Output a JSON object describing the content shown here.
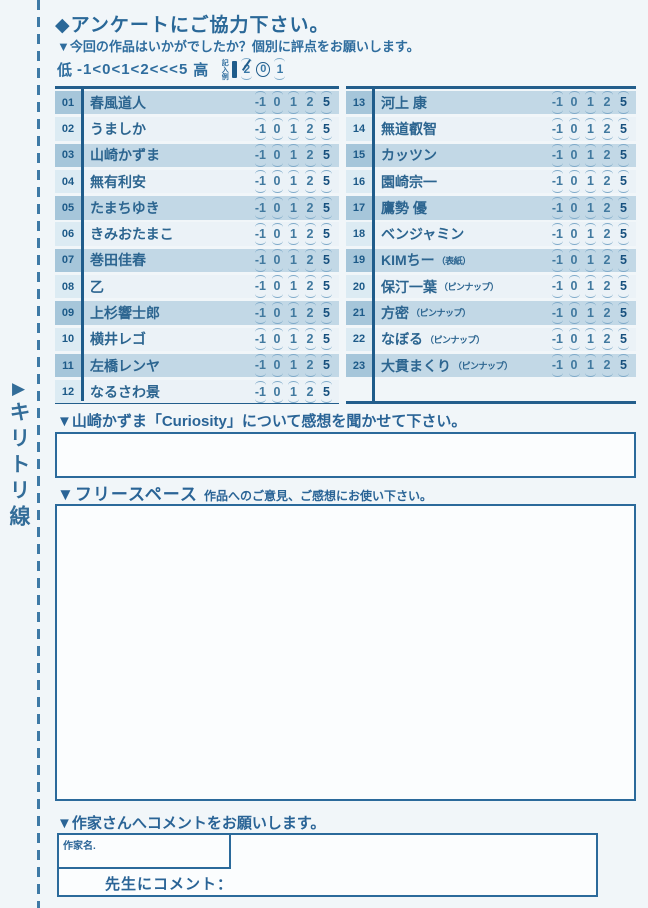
{
  "cutline": {
    "arrow": "▶",
    "label": "キリトリ線"
  },
  "header": {
    "title": "◆アンケートにご協力下さい。",
    "subtitle": "▼今回の作品はいかがでしたか？個別に評点をお願いします。",
    "scale": {
      "low_label": "低",
      "scale_text": "-1<0<1<2<<<5",
      "high_label": "高",
      "example_label": "記入例",
      "example_marks": [
        "2",
        "0",
        "1"
      ]
    }
  },
  "ratings": {
    "options": [
      "-1",
      "0",
      "1",
      "2",
      "5"
    ],
    "entries_left": [
      {
        "no": "01",
        "name": "春風道人",
        "note": ""
      },
      {
        "no": "02",
        "name": "うましか",
        "note": ""
      },
      {
        "no": "03",
        "name": "山崎かずま",
        "note": ""
      },
      {
        "no": "04",
        "name": "無有利安",
        "note": ""
      },
      {
        "no": "05",
        "name": "たまちゆき",
        "note": ""
      },
      {
        "no": "06",
        "name": "きみおたまこ",
        "note": ""
      },
      {
        "no": "07",
        "name": "巻田佳春",
        "note": ""
      },
      {
        "no": "08",
        "name": "乙",
        "note": ""
      },
      {
        "no": "09",
        "name": "上杉響士郎",
        "note": ""
      },
      {
        "no": "10",
        "name": "横井レゴ",
        "note": ""
      },
      {
        "no": "11",
        "name": "左橋レンヤ",
        "note": ""
      },
      {
        "no": "12",
        "name": "なるさわ景",
        "note": ""
      }
    ],
    "entries_right": [
      {
        "no": "13",
        "name": "河上 康",
        "note": ""
      },
      {
        "no": "14",
        "name": "無道叡智",
        "note": ""
      },
      {
        "no": "15",
        "name": "カッツン",
        "note": ""
      },
      {
        "no": "16",
        "name": "園崎宗一",
        "note": ""
      },
      {
        "no": "17",
        "name": "鷹勢 優",
        "note": ""
      },
      {
        "no": "18",
        "name": "ベンジャミン",
        "note": ""
      },
      {
        "no": "19",
        "name": "KIMちー",
        "note": "（表紙）"
      },
      {
        "no": "20",
        "name": "保汀一葉",
        "note": "（ピンナップ）"
      },
      {
        "no": "21",
        "name": "方密",
        "note": "（ピンナップ）"
      },
      {
        "no": "22",
        "name": "なぼる",
        "note": "（ピンナップ）"
      },
      {
        "no": "23",
        "name": "大貫まくり",
        "note": "（ピンナップ）"
      }
    ]
  },
  "question_curiosity": {
    "label": "▼山崎かずま「Curiosity」について感想を聞かせて下さい。"
  },
  "free_space": {
    "label_bold": "▼フリースペース",
    "label_rest": "作品へのご意見、ご感想にお使い下さい。"
  },
  "author_comment": {
    "label": "▼作家さんへコメントをお願いします。",
    "author_name_label": "作家名.",
    "teacher_comment_label": "先生にコメント："
  },
  "colors": {
    "ink_blue": "#2b6a9b",
    "row_odd": "#c2d8e6",
    "row_even": "#ebf2f7",
    "accent_dark": "#17507e",
    "page_bg": "#f1f6f9"
  }
}
